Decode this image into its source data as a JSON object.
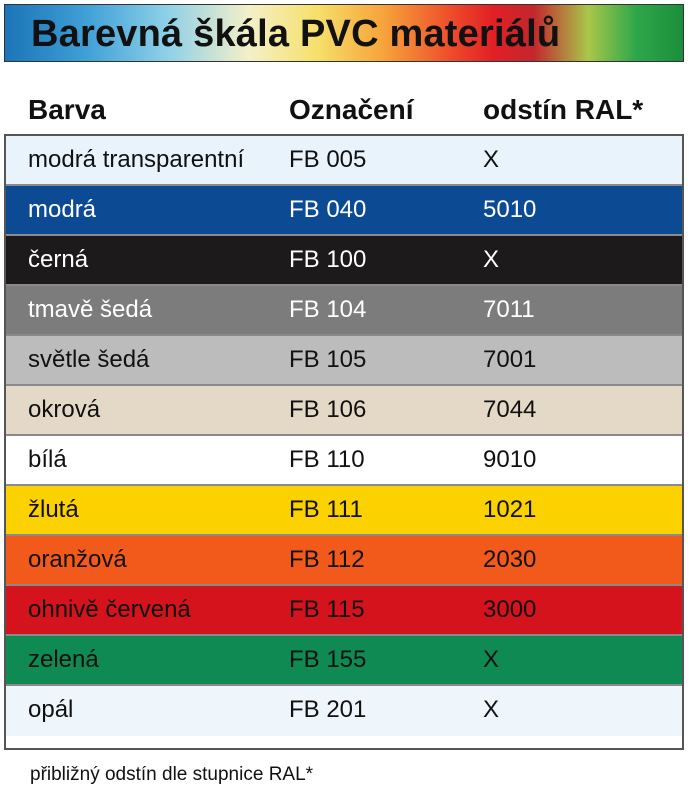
{
  "title": "Barevná škála PVC materiálů",
  "header": {
    "col1": "Barva",
    "col2": "Označení",
    "col3": "odstín RAL*"
  },
  "rows": [
    {
      "barva": "modrá transparentní",
      "oznaceni": "FB 005",
      "ral": "X",
      "bg": "#e8f3fb",
      "fg": "#111111"
    },
    {
      "barva": "modrá",
      "oznaceni": "FB 040",
      "ral": "5010",
      "bg": "#0d4a94",
      "fg": "#ffffff"
    },
    {
      "barva": "černá",
      "oznaceni": "FB 100",
      "ral": "X",
      "bg": "#1c1a1a",
      "fg": "#ffffff"
    },
    {
      "barva": "tmavě šedá",
      "oznaceni": "FB 104",
      "ral": "7011",
      "bg": "#7c7c7c",
      "fg": "#ffffff"
    },
    {
      "barva": "světle šedá",
      "oznaceni": "FB 105",
      "ral": "7001",
      "bg": "#bcbcbc",
      "fg": "#111111"
    },
    {
      "barva": "okrová",
      "oznaceni": "FB 106",
      "ral": "7044",
      "bg": "#e4d9c6",
      "fg": "#111111"
    },
    {
      "barva": "bílá",
      "oznaceni": "FB 110",
      "ral": "9010",
      "bg": "#ffffff",
      "fg": "#111111"
    },
    {
      "barva": "žlutá",
      "oznaceni": "FB 111",
      "ral": "1021",
      "bg": "#fcd100",
      "fg": "#111111"
    },
    {
      "barva": "oranžová",
      "oznaceni": "FB 112",
      "ral": "2030",
      "bg": "#f25a1c",
      "fg": "#111111"
    },
    {
      "barva": "ohnivě červená",
      "oznaceni": "FB 115",
      "ral": "3000",
      "bg": "#d4131c",
      "fg": "#111111"
    },
    {
      "barva": "zelená",
      "oznaceni": "FB 155",
      "ral": "X",
      "bg": "#0e8a52",
      "fg": "#111111"
    },
    {
      "barva": "opál",
      "oznaceni": "FB 201",
      "ral": "X",
      "bg": "#eef5fb",
      "fg": "#111111"
    }
  ],
  "footnote": "přibližný odstín dle stupnice RAL*"
}
